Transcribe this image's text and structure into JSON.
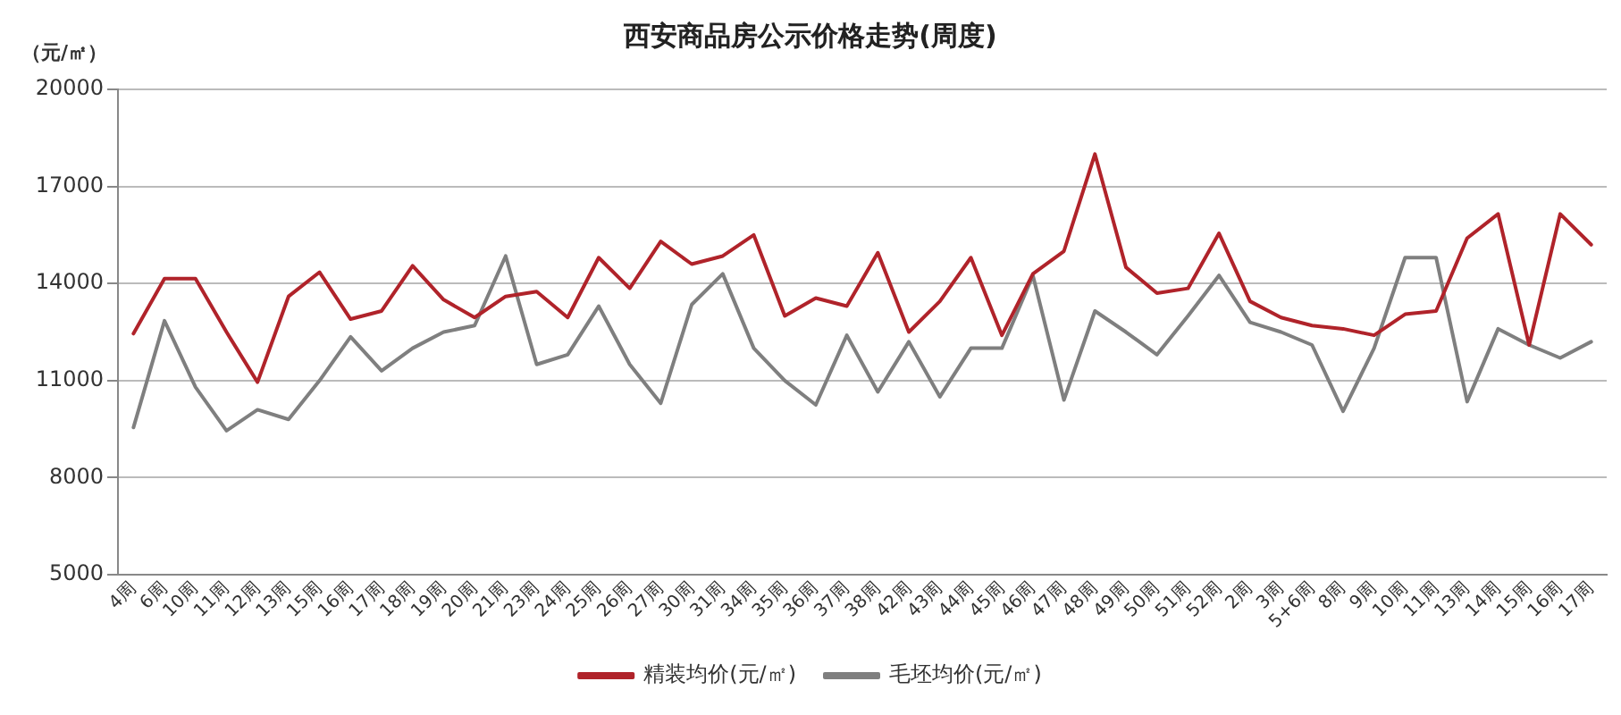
{
  "chart_data": {
    "type": "line",
    "title": "西安商品房公示价格走势(周度)",
    "ylabel": "（元/㎡）",
    "categories": [
      "4周",
      "6周",
      "10周",
      "11周",
      "12周",
      "13周",
      "15周",
      "16周",
      "17周",
      "18周",
      "19周",
      "20周",
      "21周",
      "23周",
      "24周",
      "25周",
      "26周",
      "27周",
      "30周",
      "31周",
      "34周",
      "35周",
      "36周",
      "37周",
      "38周",
      "42周",
      "43周",
      "44周",
      "45周",
      "46周",
      "47周",
      "48周",
      "49周",
      "50周",
      "51周",
      "52周",
      "2周",
      "3周",
      "5+6周",
      "8周",
      "9周",
      "10周",
      "11周",
      "13周",
      "14周",
      "15周",
      "16周",
      "17周"
    ],
    "series": [
      {
        "name": "精装均价(元/㎡)",
        "color": "#b0232a",
        "values": [
          12450,
          14150,
          14150,
          12500,
          10950,
          13600,
          14350,
          12900,
          13150,
          14550,
          13500,
          12950,
          13600,
          13750,
          12950,
          14800,
          13850,
          15300,
          14600,
          14850,
          15500,
          13000,
          13550,
          13300,
          14950,
          12500,
          13450,
          14800,
          12400,
          14300,
          15000,
          18000,
          14500,
          13700,
          13850,
          15550,
          13450,
          12950,
          12700,
          12600,
          12400,
          13050,
          13150,
          15400,
          16150,
          12100,
          16150,
          15200
        ]
      },
      {
        "name": "毛坯均价(元/㎡)",
        "color": "#7f7f7f",
        "values": [
          9550,
          12850,
          10800,
          9450,
          10100,
          9800,
          11000,
          12350,
          11300,
          12000,
          12500,
          12700,
          14850,
          11500,
          11800,
          13300,
          11500,
          10300,
          13350,
          14300,
          12000,
          11000,
          10250,
          12400,
          10650,
          12200,
          10500,
          12000,
          12000,
          14250,
          10400,
          13150,
          12500,
          11800,
          13000,
          14250,
          12800,
          12500,
          12100,
          10050,
          12000,
          14800,
          14800,
          10350,
          12600,
          12100,
          11700,
          12200
        ]
      }
    ],
    "ylim": [
      5000,
      20000
    ],
    "yticks": [
      5000,
      8000,
      11000,
      14000,
      17000,
      20000
    ],
    "grid": "y",
    "legend": "bottom",
    "marker": "none",
    "line_style": "solid"
  }
}
